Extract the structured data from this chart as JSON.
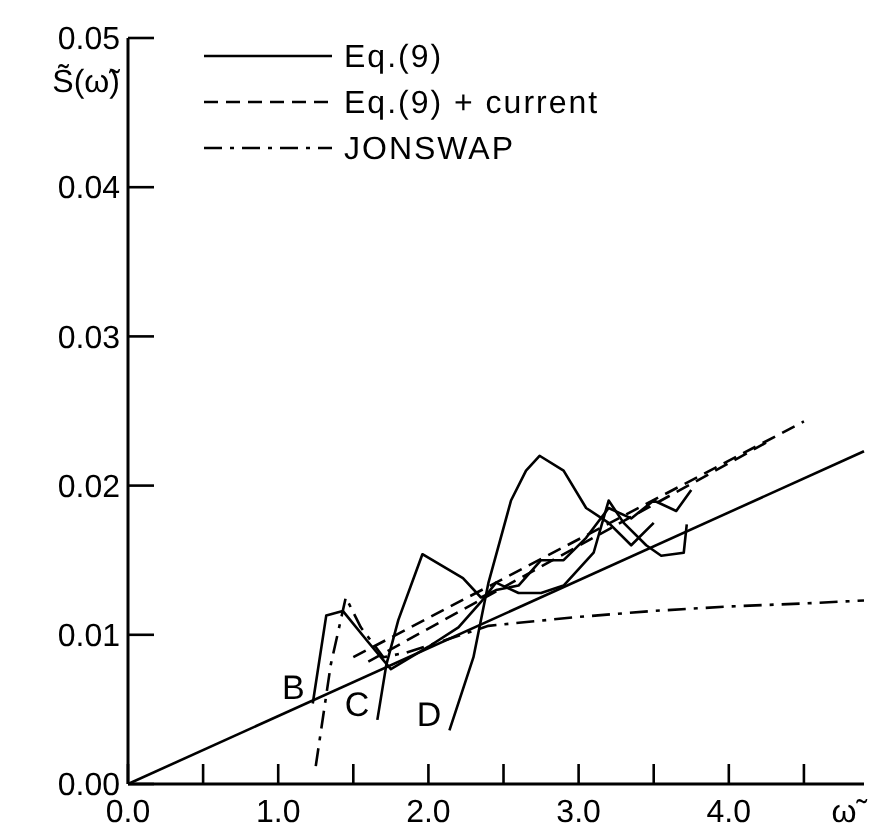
{
  "chart_data": {
    "type": "line",
    "xlabel": "ω̃",
    "ylabel": "S̃(ω̃)",
    "xlim": [
      0,
      4.9
    ],
    "ylim": [
      0,
      0.05
    ],
    "xticks": [
      {
        "value": 0,
        "label": "0.0"
      },
      {
        "value": 0.5,
        "label": null
      },
      {
        "value": 1,
        "label": "1.0"
      },
      {
        "value": 1.5,
        "label": null
      },
      {
        "value": 2,
        "label": "2.0"
      },
      {
        "value": 2.5,
        "label": null
      },
      {
        "value": 3,
        "label": "3.0"
      },
      {
        "value": 3.5,
        "label": null
      },
      {
        "value": 4,
        "label": "4.0"
      },
      {
        "value": 4.5,
        "label": null
      }
    ],
    "yticks": [
      {
        "value": 0,
        "label": "0.00"
      },
      {
        "value": 0.01,
        "label": "0.01"
      },
      {
        "value": 0.02,
        "label": "0.02"
      },
      {
        "value": 0.03,
        "label": "0.03"
      },
      {
        "value": 0.04,
        "label": "0.04"
      },
      {
        "value": 0.05,
        "label": "0.05"
      }
    ],
    "grid": false,
    "legend": "top",
    "series": [
      {
        "name": "Eq.(9)",
        "color": "#000000",
        "line_style": "solid",
        "x": [
          0,
          4.9
        ],
        "values": [
          0,
          0.0223
        ]
      },
      {
        "name": "Eq.(9) + current",
        "color": "#000000",
        "line_style": "dashed",
        "x": [
          1.5,
          4.5
        ],
        "values": [
          0.0085,
          0.0243
        ]
      },
      {
        "color": "#000000",
        "line_style": "dashed",
        "x": [
          1.6,
          4.27
        ],
        "values": [
          0.0082,
          0.023
        ]
      },
      {
        "name": "JONSWAP",
        "color": "#000000",
        "line_style": "dashdot",
        "x": [
          1.25,
          1.35,
          1.45,
          1.55,
          1.7,
          1.85,
          2.1,
          2.4,
          3.0,
          3.5,
          4.0,
          4.5,
          4.9
        ],
        "values": [
          0.0012,
          0.008,
          0.0125,
          0.0105,
          0.0085,
          0.0088,
          0.0096,
          0.0106,
          0.0112,
          0.0116,
          0.0119,
          0.0121,
          0.0123
        ]
      },
      {
        "name": "B",
        "color": "#000000",
        "line_style": "solid",
        "x": [
          1.23,
          1.32,
          1.43,
          1.6,
          1.75,
          1.85,
          2.0,
          2.2,
          2.35,
          2.45,
          2.6,
          2.75,
          2.9,
          3.1,
          3.2,
          3.3,
          3.45,
          3.55,
          3.7,
          3.72
        ],
        "values": [
          0.0054,
          0.0113,
          0.0116,
          0.0095,
          0.0077,
          0.0083,
          0.0092,
          0.0105,
          0.0122,
          0.0135,
          0.0128,
          0.0128,
          0.0133,
          0.0155,
          0.019,
          0.0175,
          0.016,
          0.0153,
          0.0155,
          0.0174
        ]
      },
      {
        "name": "C",
        "color": "#000000",
        "line_style": "solid",
        "x": [
          1.66,
          1.72,
          1.8,
          1.96,
          2.23,
          2.35,
          2.45,
          2.6,
          2.75,
          2.9,
          3.05,
          3.2,
          3.35,
          3.5,
          3.65,
          3.75
        ],
        "values": [
          0.0043,
          0.008,
          0.011,
          0.0154,
          0.0138,
          0.0125,
          0.013,
          0.0133,
          0.015,
          0.015,
          0.0165,
          0.0185,
          0.0178,
          0.019,
          0.0183,
          0.0197
        ]
      },
      {
        "name": "D",
        "color": "#000000",
        "line_style": "solid",
        "x": [
          2.14,
          2.3,
          2.4,
          2.55,
          2.65,
          2.74,
          2.9,
          3.05,
          3.2,
          3.35,
          3.5
        ],
        "values": [
          0.0036,
          0.0085,
          0.0135,
          0.019,
          0.021,
          0.022,
          0.021,
          0.0185,
          0.0175,
          0.016,
          0.0175
        ]
      }
    ]
  }
}
